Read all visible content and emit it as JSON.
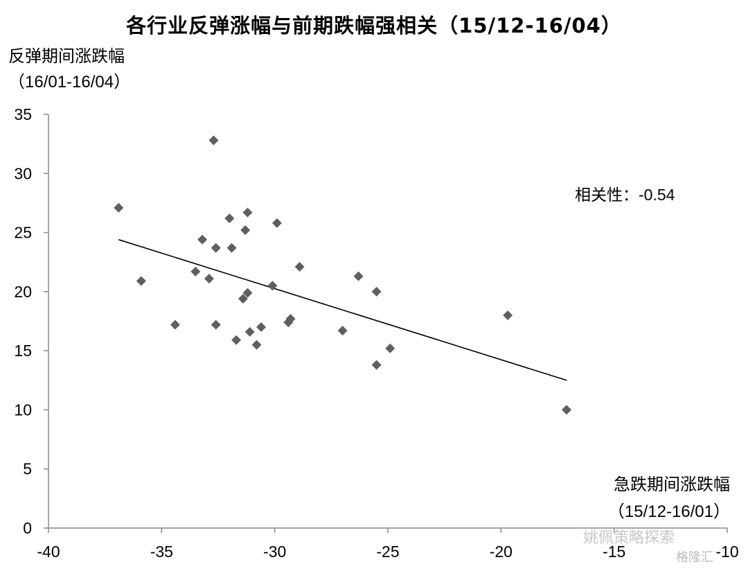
{
  "chart_data": {
    "type": "scatter",
    "title": "各行业反弹涨幅与前期跌幅强相关（15/12-16/04）",
    "ylabel": [
      "反弹期间涨跌幅",
      "（16/01-16/04）"
    ],
    "xlabel": [
      "急跌期间涨跌幅",
      "（15/12-16/01）"
    ],
    "xlim": [
      -40,
      -10
    ],
    "ylim": [
      0,
      35
    ],
    "xticks": [
      "-40",
      "-35",
      "-30",
      "-25",
      "-20",
      "-15",
      "-10"
    ],
    "yticks": [
      "0",
      "5",
      "10",
      "15",
      "20",
      "25",
      "30",
      "35"
    ],
    "grid": false,
    "marker": "diamond",
    "marker_color": "#5f5f5f",
    "trendline": {
      "x": [
        -36.9,
        -17.1
      ],
      "y": [
        24.4,
        12.5
      ],
      "color": "#000000"
    },
    "annotation": {
      "label": "相关性：",
      "value": "-0.54"
    },
    "points": [
      {
        "x": -36.9,
        "y": 27.1
      },
      {
        "x": -35.9,
        "y": 20.9
      },
      {
        "x": -34.4,
        "y": 17.2
      },
      {
        "x": -33.5,
        "y": 21.7
      },
      {
        "x": -33.2,
        "y": 24.4
      },
      {
        "x": -32.9,
        "y": 21.1
      },
      {
        "x": -32.7,
        "y": 32.8
      },
      {
        "x": -32.6,
        "y": 23.7
      },
      {
        "x": -32.6,
        "y": 17.2
      },
      {
        "x": -32.0,
        "y": 26.2
      },
      {
        "x": -31.9,
        "y": 23.7
      },
      {
        "x": -31.7,
        "y": 15.9
      },
      {
        "x": -31.4,
        "y": 19.4
      },
      {
        "x": -31.3,
        "y": 25.2
      },
      {
        "x": -31.2,
        "y": 26.7
      },
      {
        "x": -31.2,
        "y": 19.9
      },
      {
        "x": -31.1,
        "y": 16.6
      },
      {
        "x": -30.8,
        "y": 15.5
      },
      {
        "x": -30.6,
        "y": 17.0
      },
      {
        "x": -30.1,
        "y": 20.5
      },
      {
        "x": -29.9,
        "y": 25.8
      },
      {
        "x": -29.4,
        "y": 17.4
      },
      {
        "x": -29.3,
        "y": 17.7
      },
      {
        "x": -28.9,
        "y": 22.1
      },
      {
        "x": -27.0,
        "y": 16.7
      },
      {
        "x": -26.3,
        "y": 21.3
      },
      {
        "x": -25.5,
        "y": 20.0
      },
      {
        "x": -25.5,
        "y": 13.8
      },
      {
        "x": -24.9,
        "y": 15.2
      },
      {
        "x": -19.7,
        "y": 18.0
      },
      {
        "x": -17.1,
        "y": 10.0
      }
    ]
  },
  "watermark": {
    "text": "姚佩策略探索",
    "logo": "格隆汇"
  }
}
